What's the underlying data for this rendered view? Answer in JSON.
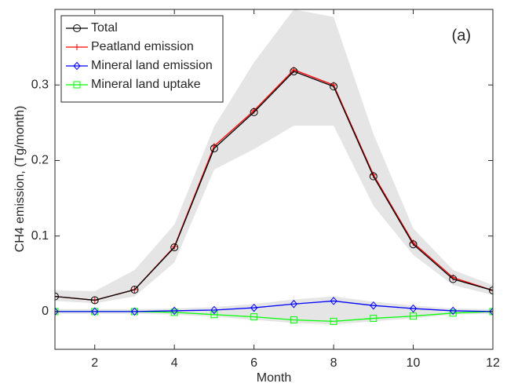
{
  "chart_data": {
    "type": "line",
    "xlabel": "Month",
    "ylabel": "CH4 emission, (Tg/month)",
    "annotation": "(a)",
    "x": [
      1,
      2,
      3,
      4,
      5,
      6,
      7,
      8,
      9,
      10,
      11,
      12
    ],
    "xlim": [
      1,
      12
    ],
    "xticks": [
      2,
      4,
      6,
      8,
      10,
      12
    ],
    "ylim": [
      -0.05,
      0.4
    ],
    "yticks": [
      0,
      0.1,
      0.2,
      0.3
    ],
    "legend": "upper left",
    "bands": [
      {
        "color": "#e5e5e5",
        "upper": [
          0.028,
          0.027,
          0.055,
          0.115,
          0.245,
          0.33,
          0.4,
          0.39,
          0.235,
          0.11,
          0.055,
          0.035
        ],
        "lower": [
          0.014,
          0.011,
          0.02,
          0.065,
          0.188,
          0.215,
          0.246,
          0.246,
          0.14,
          0.075,
          0.035,
          0.022
        ]
      },
      {
        "color": "#e5e5e5",
        "upper": [
          0.003,
          0.003,
          0.003,
          0.004,
          0.006,
          0.01,
          0.016,
          0.02,
          0.013,
          0.008,
          0.004,
          0.003
        ],
        "lower": [
          -0.003,
          -0.003,
          -0.003,
          -0.004,
          -0.007,
          -0.011,
          -0.015,
          -0.017,
          -0.013,
          -0.009,
          -0.004,
          -0.003
        ]
      }
    ],
    "series": [
      {
        "name": "Total",
        "color": "#000000",
        "marker": "circle",
        "values": [
          0.02,
          0.015,
          0.029,
          0.085,
          0.216,
          0.264,
          0.318,
          0.298,
          0.179,
          0.089,
          0.043,
          0.028
        ]
      },
      {
        "name": "Peatland emission",
        "color": "#ff0000",
        "marker": "plus",
        "values": [
          0.02,
          0.015,
          0.029,
          0.086,
          0.219,
          0.266,
          0.32,
          0.3,
          0.181,
          0.091,
          0.045,
          0.028
        ]
      },
      {
        "name": "Mineral land emission",
        "color": "#0000ff",
        "marker": "diamond",
        "values": [
          0,
          0,
          0,
          0.001,
          0.002,
          0.005,
          0.01,
          0.014,
          0.008,
          0.004,
          0.001,
          0
        ]
      },
      {
        "name": "Mineral land uptake",
        "color": "#00ff00",
        "marker": "square",
        "values": [
          0,
          0,
          0,
          -0.001,
          -0.004,
          -0.007,
          -0.011,
          -0.013,
          -0.009,
          -0.006,
          -0.002,
          0
        ]
      }
    ]
  }
}
